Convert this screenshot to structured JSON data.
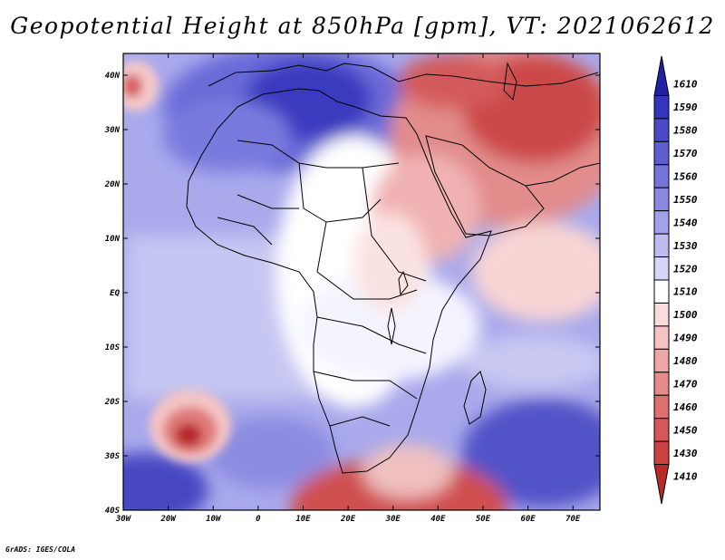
{
  "title": "Geopotential Height at 850hPa [gpm], VT: 2021062612",
  "credit": "GrADS: IGES/COLA",
  "map": {
    "region": "Africa and Middle East",
    "variable": "geopotential height 850hPa",
    "lon_ticks": [
      "30W",
      "20W",
      "10W",
      "0",
      "10E",
      "20E",
      "30E",
      "40E",
      "50E",
      "60E",
      "70E"
    ],
    "lat_ticks": [
      "40N",
      "30N",
      "20N",
      "10N",
      "EQ",
      "10S",
      "20S",
      "30S",
      "40S"
    ],
    "lon_range": [
      -30,
      76
    ],
    "lat_range": [
      -40,
      44
    ]
  },
  "colorbar": {
    "labels": [
      "1610",
      "1590",
      "1580",
      "1570",
      "1560",
      "1550",
      "1540",
      "1530",
      "1520",
      "1510",
      "1500",
      "1490",
      "1480",
      "1470",
      "1460",
      "1450",
      "1430",
      "1410"
    ],
    "colors": [
      "#2020a8",
      "#3434be",
      "#4a4ac8",
      "#5e5ed2",
      "#7474da",
      "#8a8ae2",
      "#a2a2ea",
      "#bcbcf2",
      "#d6d6f8",
      "#ffffff",
      "#fbdcdc",
      "#f6c2c2",
      "#efa6a6",
      "#e68a8a",
      "#de7070",
      "#d45858",
      "#cc4242",
      "#b82a2a"
    ]
  }
}
